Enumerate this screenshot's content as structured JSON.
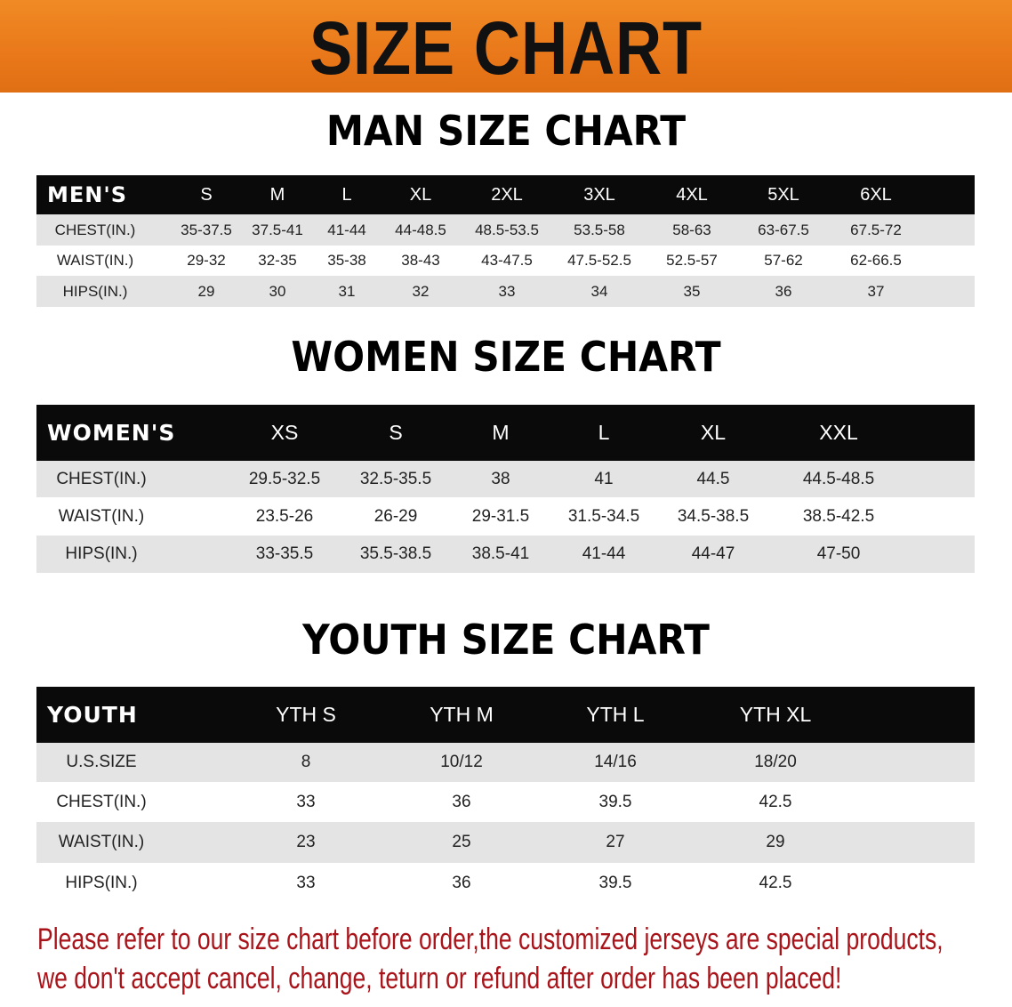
{
  "banner": {
    "title": "SIZE CHART",
    "color": "#e9781a"
  },
  "men": {
    "title": "MAN SIZE CHART",
    "header": [
      "MEN'S",
      "S",
      "M",
      "L",
      "XL",
      "2XL",
      "3XL",
      "4XL",
      "5XL",
      "6XL"
    ],
    "rows": [
      [
        "CHEST(IN.)",
        "35-37.5",
        "37.5-41",
        "41-44",
        "44-48.5",
        "48.5-53.5",
        "53.5-58",
        "58-63",
        "63-67.5",
        "67.5-72"
      ],
      [
        "WAIST(IN.)",
        "29-32",
        "32-35",
        "35-38",
        "38-43",
        "43-47.5",
        "47.5-52.5",
        "52.5-57",
        "57-62",
        "62-66.5"
      ],
      [
        "HIPS(IN.)",
        "29",
        "30",
        "31",
        "32",
        "33",
        "34",
        "35",
        "36",
        "37"
      ]
    ]
  },
  "women": {
    "title": "WOMEN SIZE CHART",
    "header": [
      "WOMEN'S",
      "XS",
      "S",
      "M",
      "L",
      "XL",
      "XXL"
    ],
    "rows": [
      [
        "CHEST(IN.)",
        "29.5-32.5",
        "32.5-35.5",
        "38",
        "41",
        "44.5",
        "44.5-48.5"
      ],
      [
        "WAIST(IN.)",
        "23.5-26",
        "26-29",
        "29-31.5",
        "31.5-34.5",
        "34.5-38.5",
        "38.5-42.5"
      ],
      [
        "HIPS(IN.)",
        "33-35.5",
        "35.5-38.5",
        "38.5-41",
        "41-44",
        "44-47",
        "47-50"
      ]
    ]
  },
  "youth": {
    "title": "YOUTH SIZE CHART",
    "header": [
      "YOUTH",
      "YTH S",
      "YTH M",
      "YTH L",
      "YTH XL"
    ],
    "rows": [
      [
        "U.S.SIZE",
        "8",
        "10/12",
        "14/16",
        "18/20"
      ],
      [
        "CHEST(IN.)",
        "33",
        "36",
        "39.5",
        "42.5"
      ],
      [
        "WAIST(IN.)",
        "23",
        "25",
        "27",
        "29"
      ],
      [
        "HIPS(IN.)",
        "33",
        "36",
        "39.5",
        "42.5"
      ]
    ]
  },
  "notice": {
    "line1": "Please refer to our size chart before order,the customized jerseys are special products,",
    "line2": "we don't accept cancel, change, teturn or refund after order has been placed!",
    "color": "#a8141a"
  }
}
